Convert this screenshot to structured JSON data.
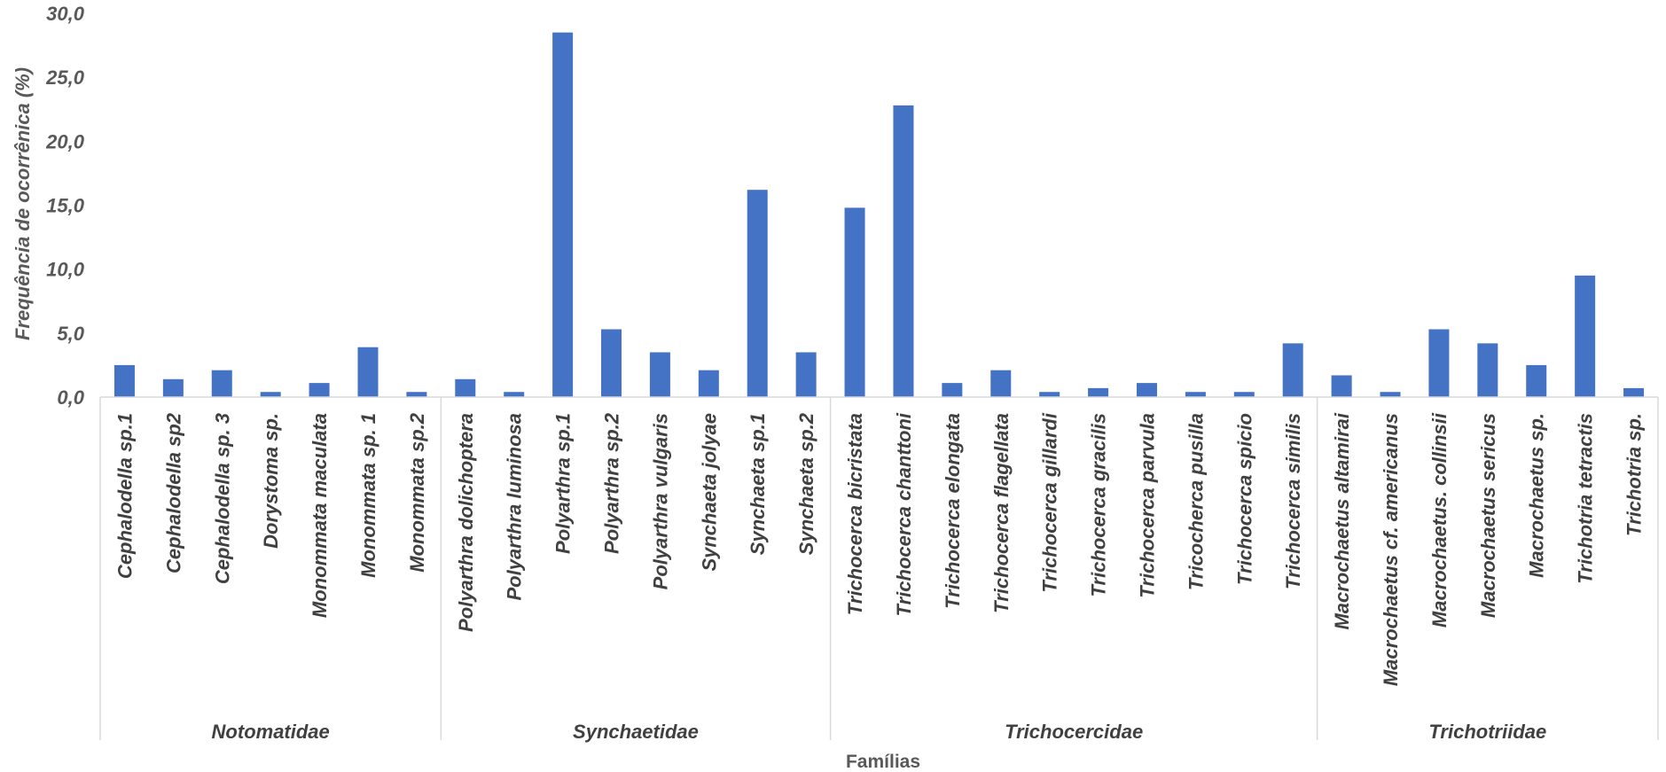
{
  "chart_data": {
    "type": "bar",
    "xlabel": "Famílias",
    "ylabel": "Frequência de ocorrênica (%)",
    "ylim": [
      0,
      30
    ],
    "yticks": [
      "0,0",
      "5,0",
      "10,0",
      "15,0",
      "20,0",
      "25,0",
      "30,0"
    ],
    "grid": false,
    "legend": "none",
    "bar_color": "#4472C4",
    "groups": [
      {
        "name": "Notomatidae",
        "size": 7
      },
      {
        "name": "Synchaetidae",
        "size": 8
      },
      {
        "name": "Trichocercidae",
        "size": 10
      },
      {
        "name": "Trichotriidae",
        "size": 7
      }
    ],
    "categories": [
      "Cephalodella sp.1",
      "Cephalodella sp2",
      "Cephalodella sp. 3",
      "Dorystoma sp.",
      "Monommata maculata",
      "Monommata sp. 1",
      "Monommata sp.2",
      "Polyarthra dolichoptera",
      "Polyarthra luminosa",
      "Polyarthra sp.1",
      "Polyarthra sp.2",
      "Polyarthra vulgaris",
      "Synchaeta jolyae",
      "Synchaeta sp.1",
      "Synchaeta sp.2",
      "Trichocerca bicristata",
      "Trichocerca chanttoni",
      "Trichocerca elongata",
      "Trichocerca flagellata",
      "Trichocerca gillardi",
      "Trichocerca gracilis",
      "Trichocerca parvula",
      "Tricocherca pusilla",
      "Trichocerca spicio",
      "Trichocerca similis",
      "Macrochaetus altamirai",
      "Macrochaetus cf. americanus",
      "Macrochaetus. collinsii",
      "Macrochaetus sericus",
      "Macrochaetus sp.",
      "Trichotria tetractis",
      "Trichotria sp."
    ],
    "values": [
      2.5,
      1.4,
      2.1,
      0.4,
      1.1,
      3.9,
      0.4,
      1.4,
      0.4,
      28.5,
      5.3,
      3.5,
      2.1,
      16.2,
      3.5,
      14.8,
      22.8,
      1.1,
      2.1,
      0.4,
      0.7,
      1.1,
      0.4,
      0.4,
      4.2,
      1.7,
      0.4,
      5.3,
      4.2,
      2.5,
      9.5,
      0.7
    ]
  }
}
